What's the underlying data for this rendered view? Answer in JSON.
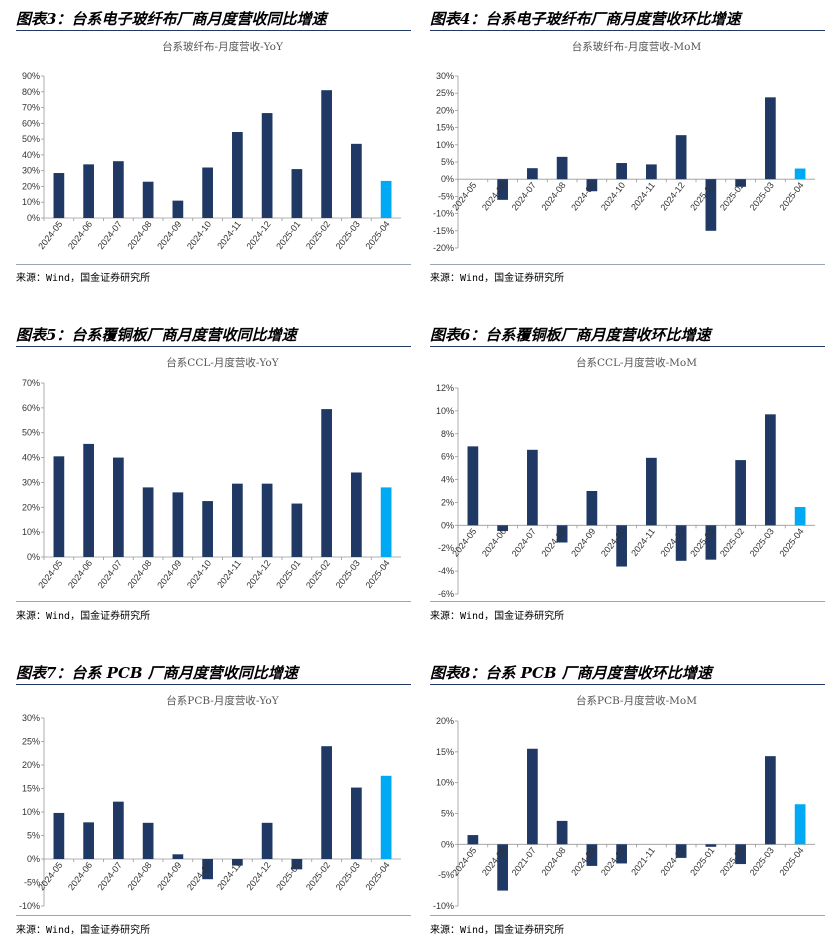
{
  "colors": {
    "bar": "#1f3864",
    "highlight": "#00a9f4",
    "axis": "#999999"
  },
  "source_label": "来源：Wind，国金证券研究所",
  "chart_data": [
    {
      "id": "fig3",
      "figure_title": "图表3：台系电子玻纤布厂商月度营收同比增速",
      "type": "bar",
      "title": "台系玻纤布-月度营收-YoY",
      "categories": [
        "2024-05",
        "2024-06",
        "2024-07",
        "2024-08",
        "2024-09",
        "2024-10",
        "2024-11",
        "2024-12",
        "2025-01",
        "2025-02",
        "2025-03",
        "2025-04"
      ],
      "values": [
        28.5,
        34,
        36,
        23,
        11,
        32,
        54.5,
        66.5,
        31,
        81,
        47,
        23.5
      ],
      "ylim": [
        0,
        90
      ],
      "step": 10,
      "yticks": [
        "0%",
        "10%",
        "20%",
        "30%",
        "40%",
        "50%",
        "60%",
        "70%",
        "80%",
        "90%"
      ],
      "xlabel": "",
      "ylabel": ""
    },
    {
      "id": "fig4",
      "figure_title": "图表4：台系电子玻纤布厂商月度营收环比增速",
      "type": "bar",
      "title": "台系玻纤布-月度营收-MoM",
      "categories": [
        "2024-05",
        "2024-06",
        "2024-07",
        "2024-08",
        "2024-09",
        "2024-10",
        "2024-11",
        "2024-12",
        "2025-01",
        "2025-02",
        "2025-03",
        "2025-04"
      ],
      "values": [
        0,
        -6,
        3.2,
        6.5,
        -3.5,
        4.7,
        4.3,
        12.8,
        -15,
        -2.2,
        23.8,
        3.1
      ],
      "ylim": [
        -20,
        30
      ],
      "step": 5,
      "yticks": [
        "-20%",
        "-15%",
        "-10%",
        "-5%",
        "0%",
        "5%",
        "10%",
        "15%",
        "20%",
        "25%",
        "30%"
      ],
      "xlabel": "",
      "ylabel": ""
    },
    {
      "id": "fig5",
      "figure_title": "图表5：台系覆铜板厂商月度营收同比增速",
      "type": "bar",
      "title": "台系CCL-月度营收-YoY",
      "categories": [
        "2024-05",
        "2024-06",
        "2024-07",
        "2024-08",
        "2024-09",
        "2024-10",
        "2024-11",
        "2024-12",
        "2025-01",
        "2025-02",
        "2025-03",
        "2025-04"
      ],
      "values": [
        40.5,
        45.5,
        40,
        28,
        26,
        22.5,
        29.5,
        29.5,
        21.5,
        59.5,
        34,
        28
      ],
      "ylim": [
        0,
        70
      ],
      "step": 10,
      "yticks": [
        "0%",
        "10%",
        "20%",
        "30%",
        "40%",
        "50%",
        "60%",
        "70%"
      ],
      "xlabel": "",
      "ylabel": ""
    },
    {
      "id": "fig6",
      "figure_title": "图表6：台系覆铜板厂商月度营收环比增速",
      "type": "bar",
      "title": "台系CCL-月度营收-MoM",
      "categories": [
        "2024-05",
        "2024-06",
        "2024-07",
        "2024-08",
        "2024-09",
        "2024-10",
        "2024-11",
        "2024-12",
        "2025-01",
        "2025-02",
        "2025-03",
        "2025-04"
      ],
      "values": [
        6.9,
        -0.5,
        6.6,
        -1.5,
        3,
        -3.6,
        5.9,
        -3.1,
        -3,
        5.7,
        9.7,
        1.6
      ],
      "ylim": [
        -6,
        12
      ],
      "step": 2,
      "yticks": [
        "-6%",
        "-4%",
        "-2%",
        "0%",
        "2%",
        "4%",
        "6%",
        "8%",
        "10%",
        "12%"
      ],
      "xlabel": "",
      "ylabel": ""
    },
    {
      "id": "fig7",
      "figure_title": "图表7：台系 PCB 厂商月度营收同比增速",
      "type": "bar",
      "title": "台系PCB-月度营收-YoY",
      "categories": [
        "2024-05",
        "2024-06",
        "2024-07",
        "2024-08",
        "2024-09",
        "2024-10",
        "2024-11",
        "2024-12",
        "2025-01",
        "2025-02",
        "2025-03",
        "2025-04"
      ],
      "values": [
        9.8,
        7.8,
        12.2,
        7.7,
        1,
        -4.3,
        -1.4,
        7.7,
        -2.2,
        24,
        15.2,
        17.7
      ],
      "ylim": [
        -10,
        30
      ],
      "step": 5,
      "yticks": [
        "-10%",
        "-5%",
        "0%",
        "5%",
        "10%",
        "15%",
        "20%",
        "25%",
        "30%"
      ],
      "xlabel": "",
      "ylabel": ""
    },
    {
      "id": "fig8",
      "figure_title": "图表8：台系 PCB 厂商月度营收环比增速",
      "type": "bar",
      "title": "台系PCB-月度营收-MoM",
      "categories": [
        "2024-05",
        "2024-06",
        "2021-07",
        "2024-08",
        "2024-09",
        "2024-10",
        "2021-11",
        "2024-12",
        "2025-01",
        "2025-02",
        "2025-03",
        "2025-04"
      ],
      "values": [
        1.5,
        -7.5,
        15.5,
        3.8,
        -3.5,
        -3.1,
        0,
        -2.2,
        -0.4,
        -3.2,
        14.3,
        6.5
      ],
      "ylim": [
        -10,
        20
      ],
      "step": 5,
      "yticks": [
        "-10%",
        "-5%",
        "0%",
        "5%",
        "10%",
        "15%",
        "20%"
      ],
      "xlabel": "",
      "ylabel": ""
    }
  ]
}
